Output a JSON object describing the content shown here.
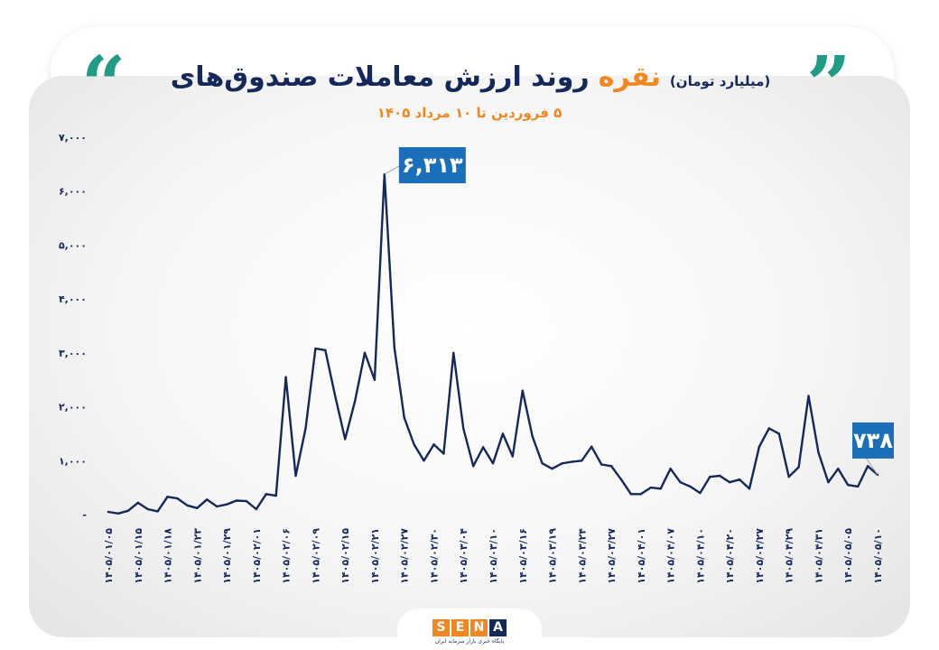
{
  "header": {
    "title_main": "روند ارزش معاملات صندوق‌های",
    "title_accent": "نقره",
    "title_unit": "(میلیارد تومان)",
    "subtitle": "۵ فروردین تا ۱۰ مرداد ۱۴۰۵",
    "quote_left": "“",
    "quote_right": "”"
  },
  "colors": {
    "navy": "#14285a",
    "orange": "#f2871f",
    "teal": "#1f9b86",
    "callout": "#1b6fb8"
  },
  "logo": {
    "letters": [
      "S",
      "E",
      "N",
      "A"
    ],
    "tagline": "پایگاه خبری بازار سرمایه ایران"
  },
  "chart_data": {
    "type": "line",
    "title": "روند ارزش معاملات صندوق‌های نقره",
    "subtitle": "۵ فروردین تا ۱۰ مرداد ۱۴۰۵",
    "ylabel": "(میلیارد تومان)",
    "ylim": [
      0,
      7000
    ],
    "yticks": [
      0,
      1000,
      2000,
      3000,
      4000,
      5000,
      6000,
      7000
    ],
    "ytick_labels": [
      "-",
      "۱,۰۰۰",
      "۲,۰۰۰",
      "۳,۰۰۰",
      "۴,۰۰۰",
      "۵,۰۰۰",
      "۶,۰۰۰",
      "۷,۰۰۰"
    ],
    "grid": false,
    "legend": "none",
    "x_tick_labels": [
      "۱۴۰۵/۰۱/۰۵",
      "۱۴۰۵/۰۱/۱۵",
      "۱۴۰۵/۰۱/۱۸",
      "۱۴۰۵/۰۱/۲۳",
      "۱۴۰۵/۰۱/۲۹",
      "۱۴۰۵/۰۲/۰۱",
      "۱۴۰۵/۰۲/۰۶",
      "۱۴۰۵/۰۲/۰۹",
      "۱۴۰۵/۰۲/۱۵",
      "۱۴۰۵/۰۲/۲۱",
      "۱۴۰۵/۰۲/۲۷",
      "۱۴۰۵/۰۲/۳۰",
      "۱۴۰۵/۰۳/۰۴",
      "۱۴۰۵/۰۳/۱۰",
      "۱۴۰۵/۰۳/۱۶",
      "۱۴۰۵/۰۳/۱۹",
      "۱۴۰۵/۰۳/۲۴",
      "۱۴۰۵/۰۳/۲۷",
      "۱۴۰۵/۰۴/۰۱",
      "۱۴۰۵/۰۴/۰۷",
      "۱۴۰۵/۰۴/۱۰",
      "۱۴۰۵/۰۴/۲۰",
      "۱۴۰۵/۰۴/۲۷",
      "۱۴۰۵/۰۴/۲۹",
      "۱۴۰۵/۰۴/۳۱",
      "۱۴۰۵/۰۵/۰۵",
      "۱۴۰۵/۰۵/۱۰"
    ],
    "series": [
      {
        "values": [
          50,
          20,
          70,
          220,
          100,
          60,
          330,
          300,
          170,
          120,
          280,
          150,
          190,
          260,
          250,
          100,
          380,
          350,
          2550,
          720,
          1600,
          3080,
          3050,
          2200,
          1400,
          2100,
          3000,
          2500,
          6313,
          3100,
          1800,
          1300,
          1000,
          1300,
          1130,
          3000,
          1600,
          900,
          1250,
          950,
          1500,
          1080,
          2300,
          1450,
          950,
          850,
          950,
          980,
          1000,
          1260,
          930,
          900,
          650,
          380,
          380,
          500,
          480,
          850,
          600,
          520,
          400,
          700,
          720,
          600,
          650,
          480,
          1260,
          1600,
          1500,
          700,
          880,
          2200,
          1150,
          600,
          850,
          550,
          520,
          900,
          738
        ]
      }
    ],
    "callouts": [
      {
        "label": "۶,۳۱۳",
        "value": 6313,
        "index": 28
      },
      {
        "label": "۷۳۸",
        "value": 738,
        "index": 78
      }
    ]
  }
}
